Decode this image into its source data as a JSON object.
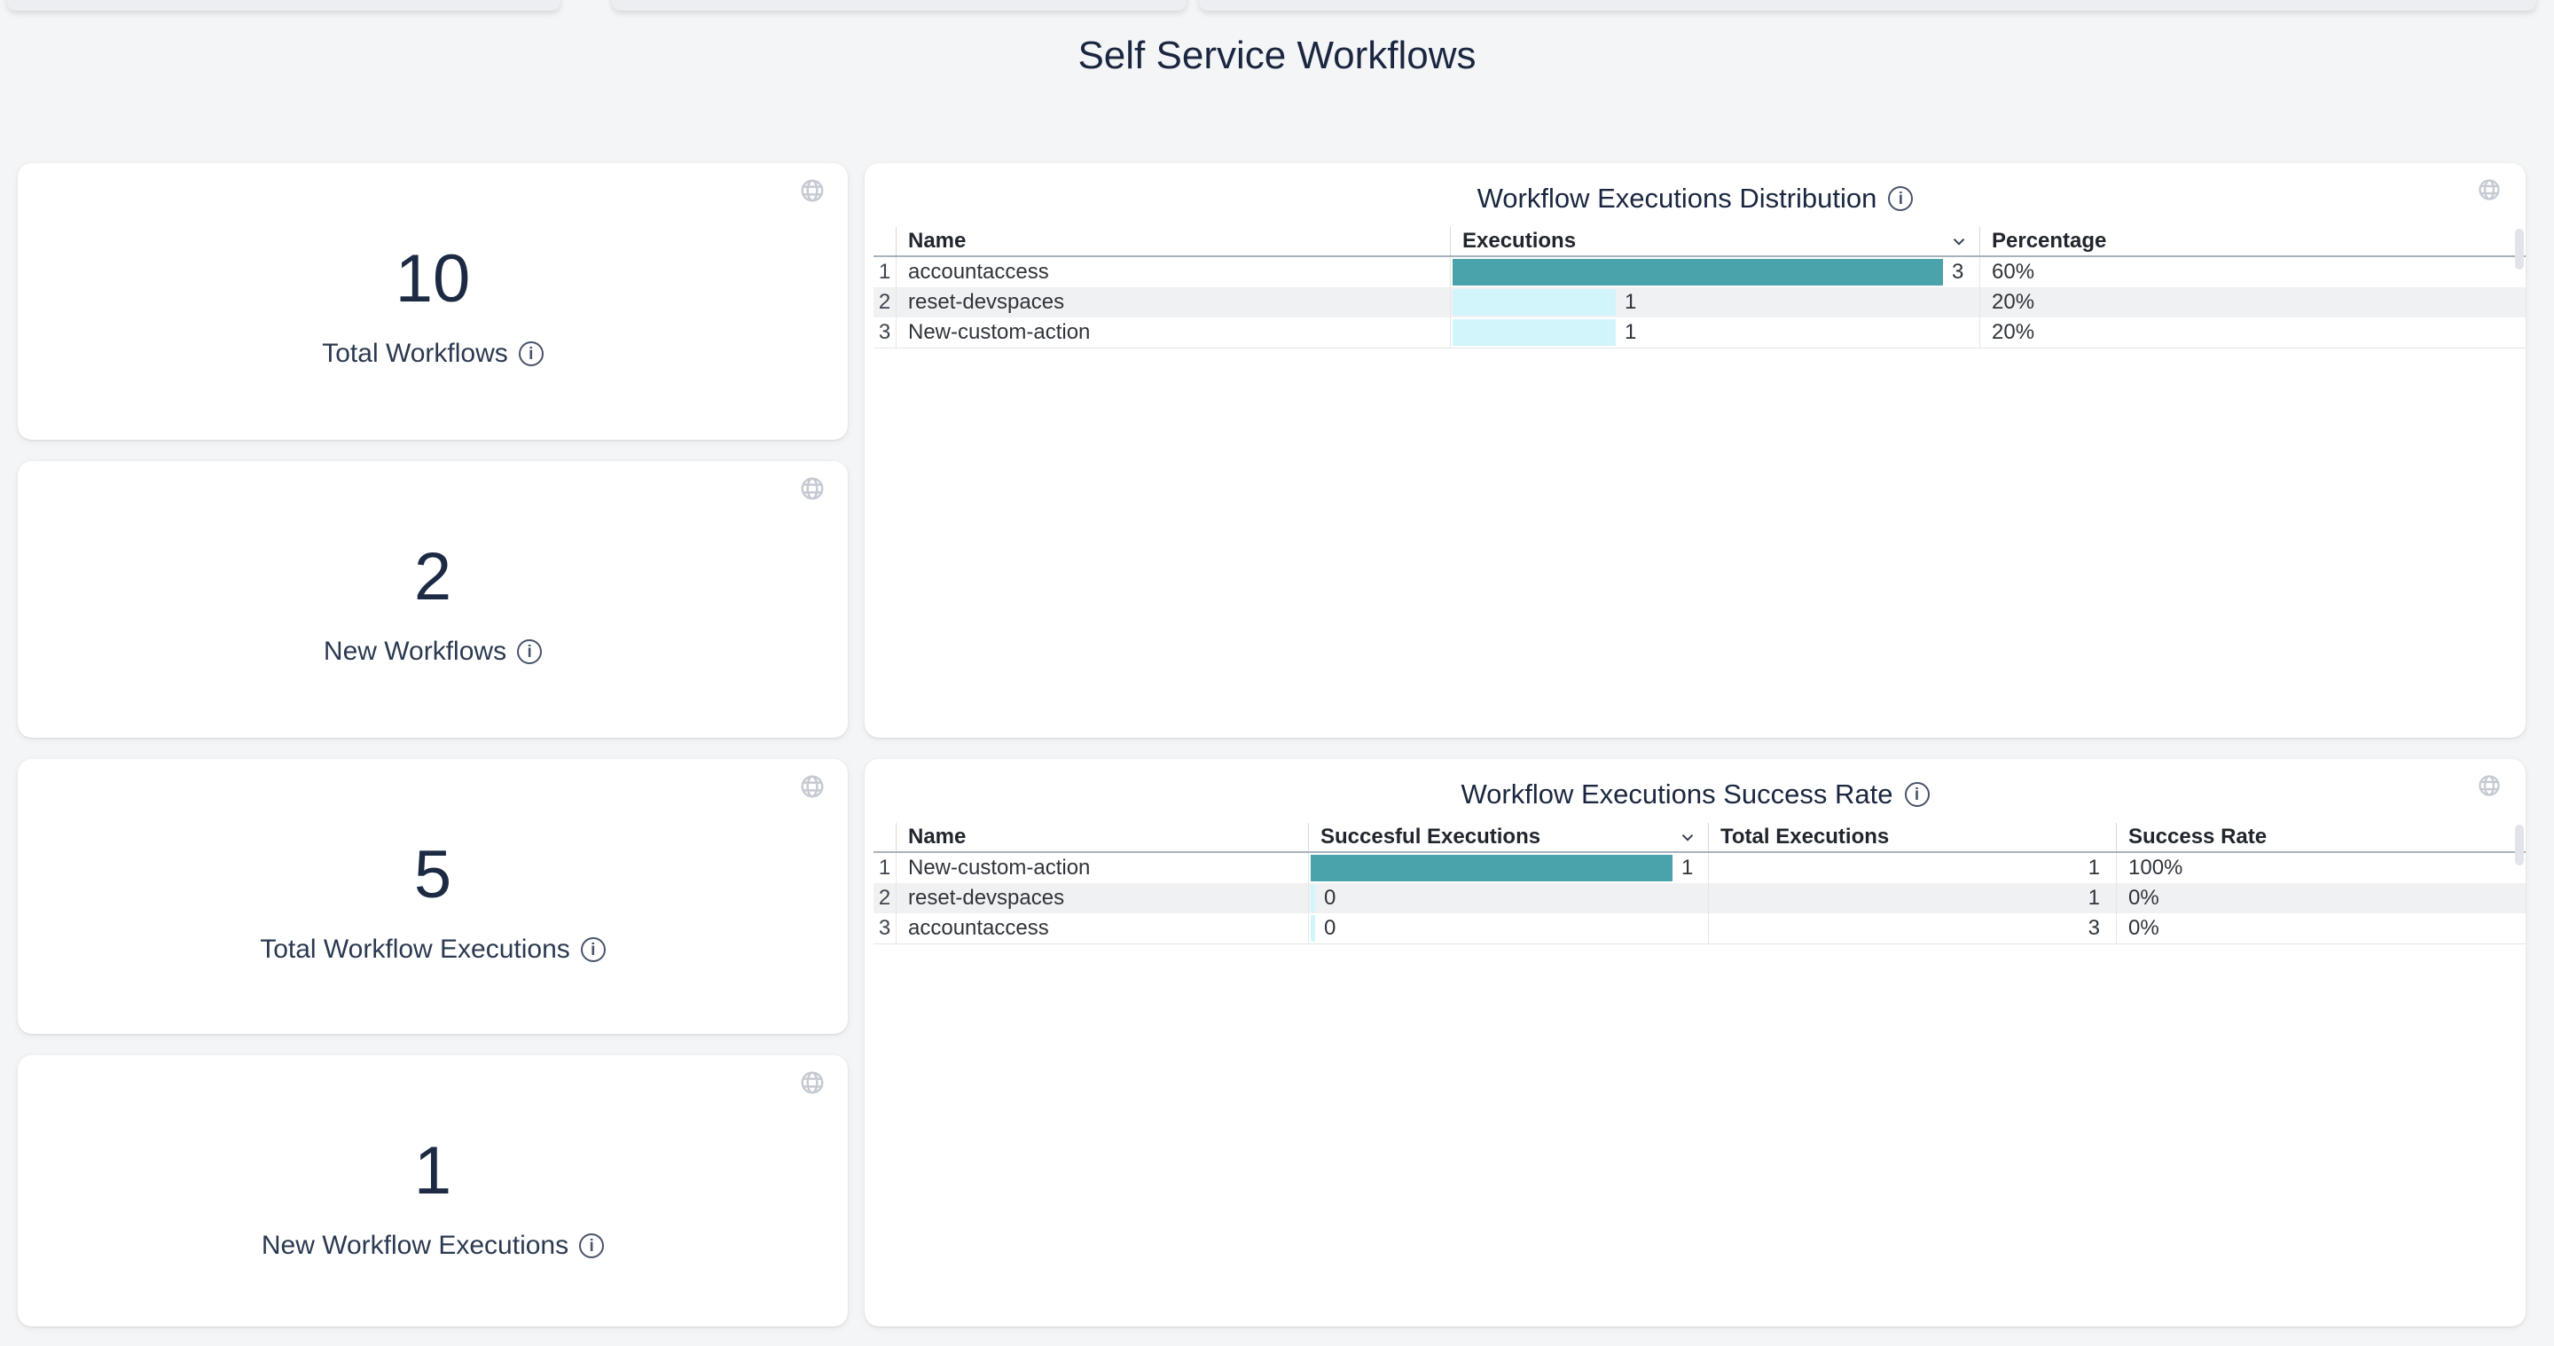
{
  "page_title": "Self Service Workflows",
  "stats": [
    {
      "value": "10",
      "label": "Total Workflows"
    },
    {
      "value": "2",
      "label": "New Workflows"
    },
    {
      "value": "5",
      "label": "Total Workflow Executions"
    },
    {
      "value": "1",
      "label": "New Workflow Executions"
    }
  ],
  "distribution_table": {
    "title": "Workflow Executions Distribution",
    "columns": {
      "name": "Name",
      "executions": "Executions",
      "percentage": "Percentage"
    },
    "max_executions": 3,
    "rows": [
      {
        "index": "1",
        "name": "accountaccess",
        "executions": 3,
        "percentage": "60%"
      },
      {
        "index": "2",
        "name": "reset-devspaces",
        "executions": 1,
        "percentage": "20%"
      },
      {
        "index": "3",
        "name": "New-custom-action",
        "executions": 1,
        "percentage": "20%"
      }
    ]
  },
  "success_table": {
    "title": "Workflow Executions Success Rate",
    "columns": {
      "name": "Name",
      "successful": "Succesful Executions",
      "total": "Total Executions",
      "rate": "Success Rate"
    },
    "max_successful": 1,
    "rows": [
      {
        "index": "1",
        "name": "New-custom-action",
        "successful": 1,
        "total": "1",
        "rate": "100%"
      },
      {
        "index": "2",
        "name": "reset-devspaces",
        "successful": 0,
        "total": "1",
        "rate": "0%"
      },
      {
        "index": "3",
        "name": "accountaccess",
        "successful": 0,
        "total": "3",
        "rate": "0%"
      }
    ]
  },
  "colors": {
    "bar_primary": "#4aa2aa",
    "bar_secondary": "#d2f5fb",
    "heading_text": "#1b2740",
    "page_background": "#f4f5f7",
    "striped_row": "#f0f1f2"
  },
  "chart_data": [
    {
      "type": "table",
      "title": "Workflow Executions Distribution",
      "columns": [
        "Name",
        "Executions",
        "Percentage"
      ],
      "rows": [
        [
          "accountaccess",
          3,
          "60%"
        ],
        [
          "reset-devspaces",
          1,
          "20%"
        ],
        [
          "New-custom-action",
          1,
          "20%"
        ]
      ],
      "bar_column": "Executions",
      "bar_max": 3
    },
    {
      "type": "table",
      "title": "Workflow Executions Success Rate",
      "columns": [
        "Name",
        "Succesful Executions",
        "Total Executions",
        "Success Rate"
      ],
      "rows": [
        [
          "New-custom-action",
          1,
          1,
          "100%"
        ],
        [
          "reset-devspaces",
          0,
          1,
          "0%"
        ],
        [
          "accountaccess",
          0,
          3,
          "0%"
        ]
      ],
      "bar_column": "Succesful Executions",
      "bar_max": 1
    }
  ]
}
